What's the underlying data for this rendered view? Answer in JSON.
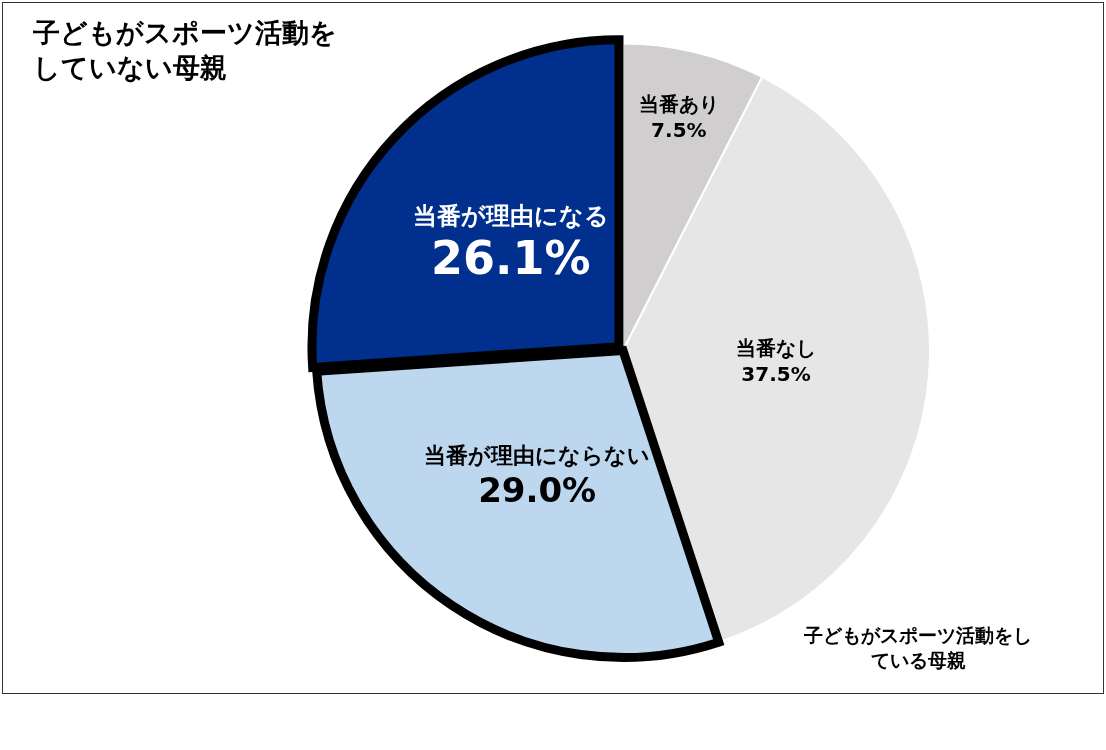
{
  "chart_data": {
    "type": "pie",
    "categories": [
      "当番あり",
      "当番なし",
      "当番が理由にならない",
      "当番が理由になる"
    ],
    "values": [
      7.5,
      37.5,
      29.0,
      26.1
    ],
    "value_labels": [
      "7.5%",
      "37.5%",
      "29.0%",
      "26.1%"
    ],
    "colors": [
      "#d0cece",
      "#e7e6e6",
      "#bdd7ee",
      "#002f8e"
    ],
    "annotations": [
      "子どもがスポーツ活動をしていない母親",
      "子どもがスポーツ活動をしている母親"
    ],
    "legend": false
  }
}
